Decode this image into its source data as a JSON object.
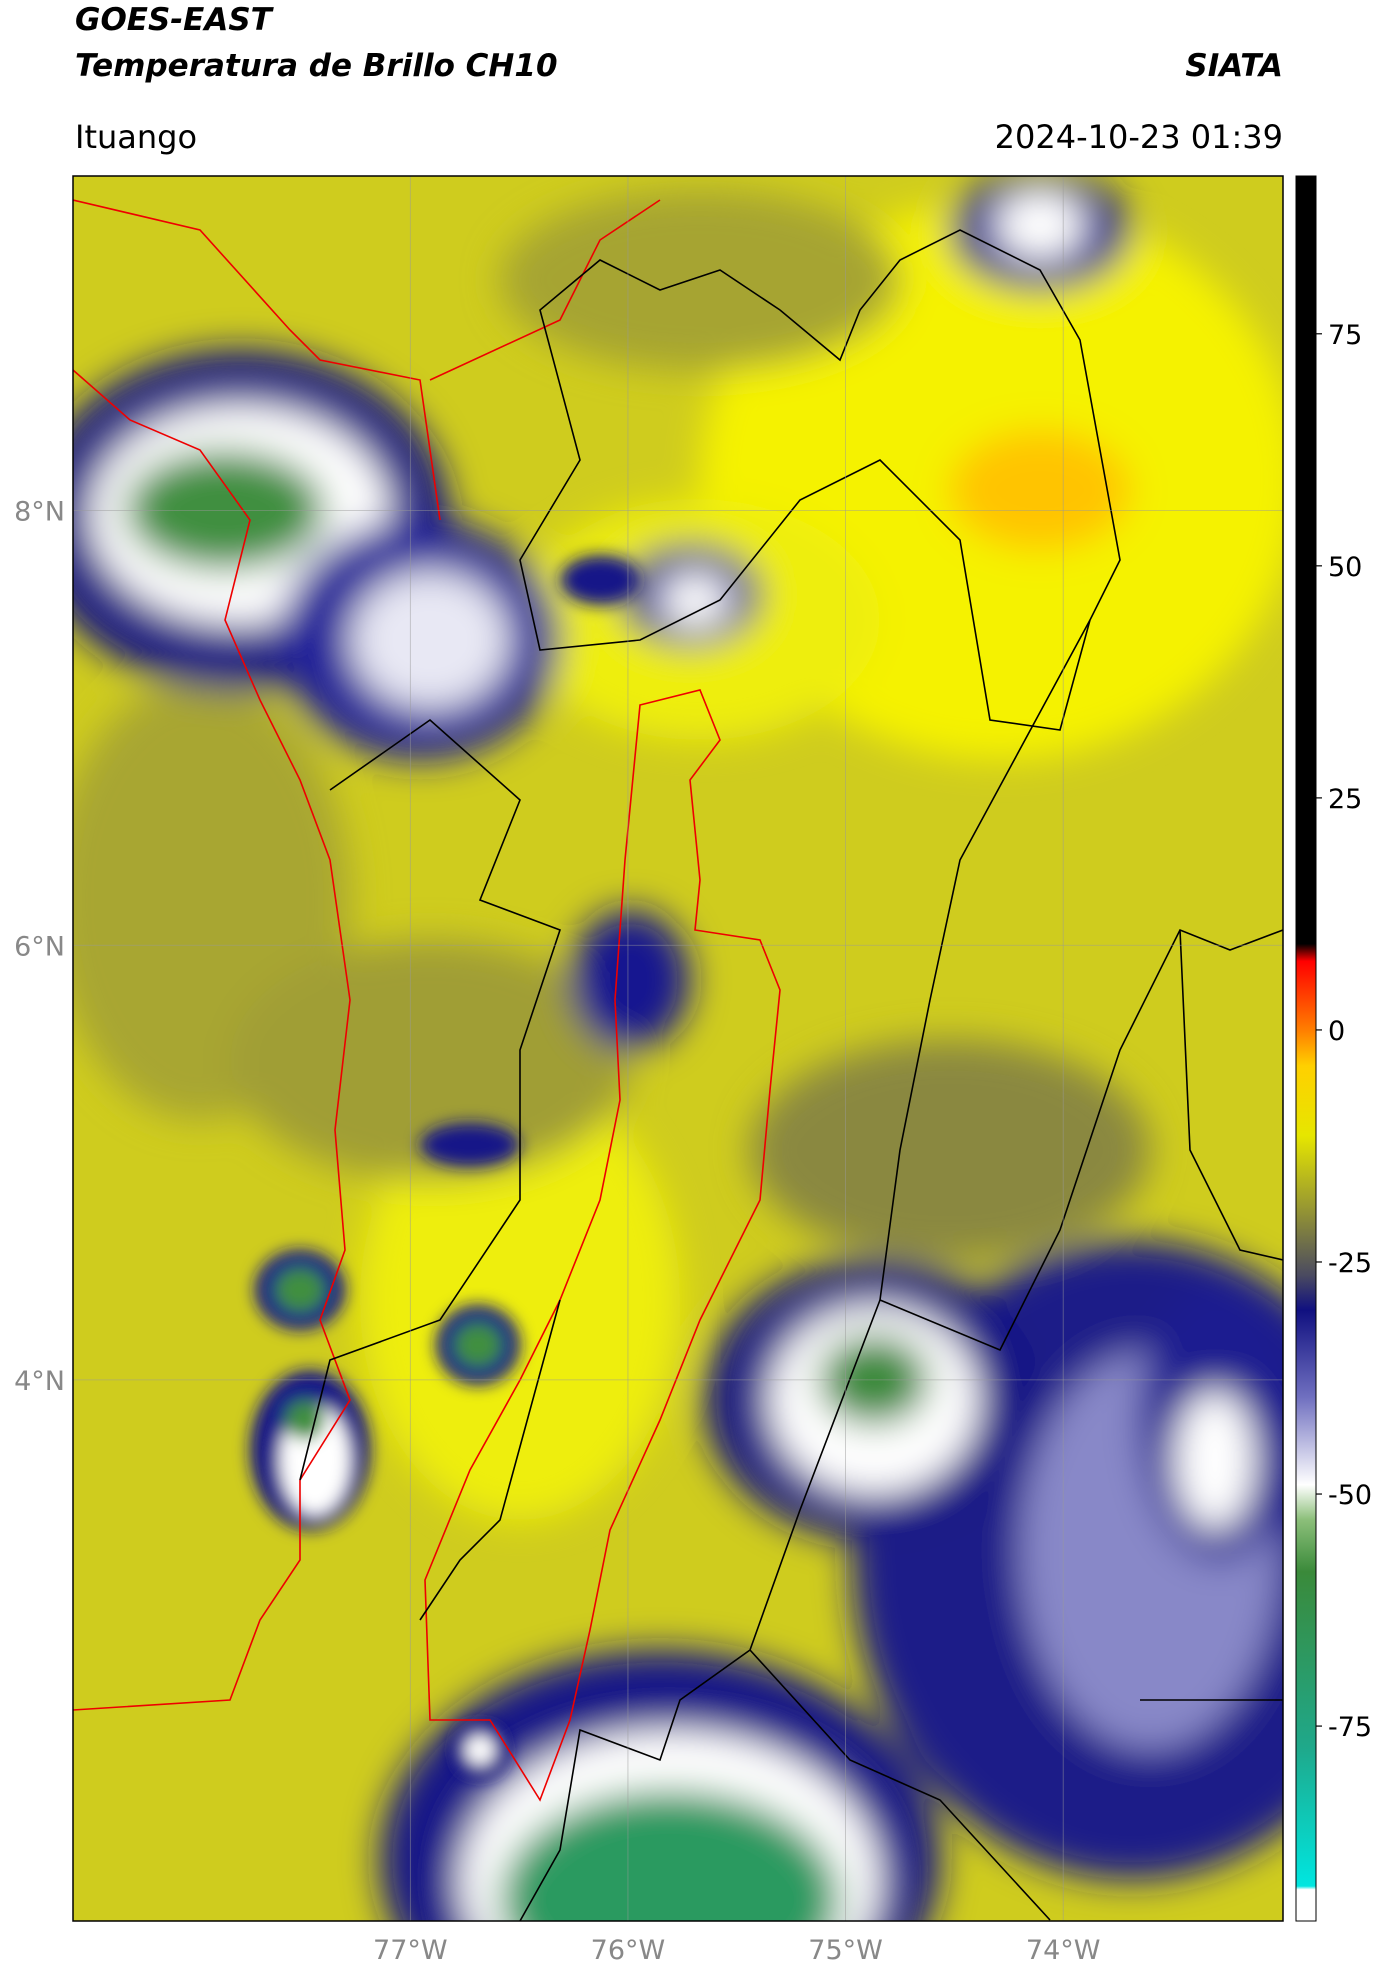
{
  "header": {
    "title": "GOES-EAST",
    "subtitle": "Temperatura de Brillo CH10",
    "agency": "SIATA",
    "location": "Ituango",
    "timestamp": "2024-10-23 01:39"
  },
  "map": {
    "lonlim": [
      -78.55,
      -72.99
    ],
    "latlim": [
      1.51,
      9.54
    ],
    "lonticks": [
      {
        "value": -77,
        "label": "77°W"
      },
      {
        "value": -76,
        "label": "76°W"
      },
      {
        "value": -75,
        "label": "75°W"
      },
      {
        "value": -74,
        "label": "74°W"
      }
    ],
    "latticks": [
      {
        "value": 8,
        "label": "8°N"
      },
      {
        "value": 6,
        "label": "6°N"
      },
      {
        "value": 4,
        "label": "4°N"
      }
    ]
  },
  "colorbar": {
    "lim": [
      -96,
      92
    ],
    "ticks": [
      75,
      50,
      25,
      0,
      -25,
      -50,
      -75
    ]
  }
}
